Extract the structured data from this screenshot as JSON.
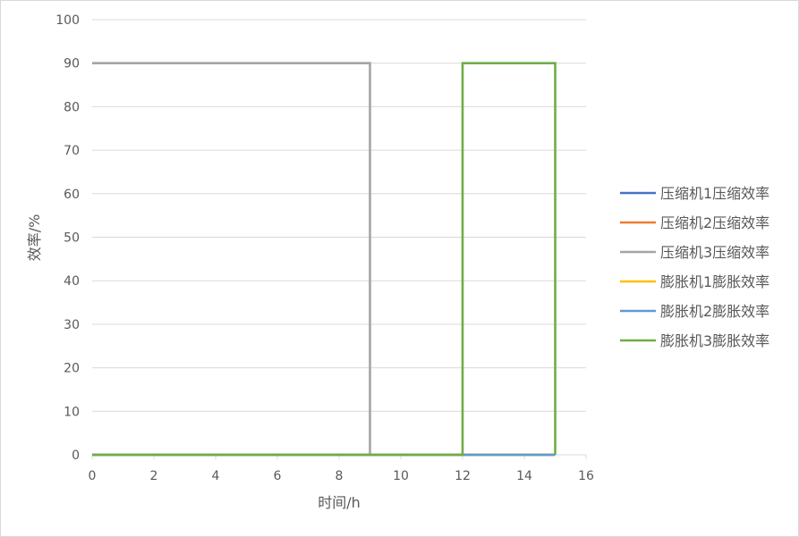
{
  "chart_data": {
    "type": "line",
    "title": "",
    "xlabel": "时间/h",
    "ylabel": "效率/%",
    "xlim": [
      0,
      16
    ],
    "ylim": [
      0,
      100
    ],
    "xticks": [
      "0",
      "2",
      "4",
      "6",
      "8",
      "10",
      "12",
      "14",
      "16"
    ],
    "yticks": [
      "0",
      "10",
      "20",
      "30",
      "40",
      "50",
      "60",
      "70",
      "80",
      "90",
      "100"
    ],
    "grid": "horizontal",
    "legend_position": "right",
    "series": [
      {
        "name": "压缩机1压缩效率",
        "color": "#4472c4",
        "x": [
          0,
          9,
          9,
          15
        ],
        "y": [
          0,
          0,
          0,
          0
        ]
      },
      {
        "name": "压缩机2压缩效率",
        "color": "#ed7d31",
        "x": [
          0,
          9,
          9,
          15
        ],
        "y": [
          0,
          0,
          0,
          0
        ]
      },
      {
        "name": "压缩机3压缩效率",
        "color": "#a5a5a5",
        "x": [
          0,
          9,
          9,
          15
        ],
        "y": [
          90,
          90,
          0,
          0
        ]
      },
      {
        "name": "膨胀机1膨胀效率",
        "color": "#ffc000",
        "x": [
          0,
          12,
          12,
          15,
          15
        ],
        "y": [
          0,
          0,
          0,
          0,
          0
        ]
      },
      {
        "name": "膨胀机2膨胀效率",
        "color": "#5b9bd5",
        "x": [
          0,
          12,
          12,
          15,
          15
        ],
        "y": [
          0,
          0,
          0,
          0,
          0
        ]
      },
      {
        "name": "膨胀机3膨胀效率",
        "color": "#70ad47",
        "x": [
          0,
          12,
          12,
          15,
          15
        ],
        "y": [
          0,
          0,
          90,
          90,
          0
        ]
      }
    ]
  }
}
